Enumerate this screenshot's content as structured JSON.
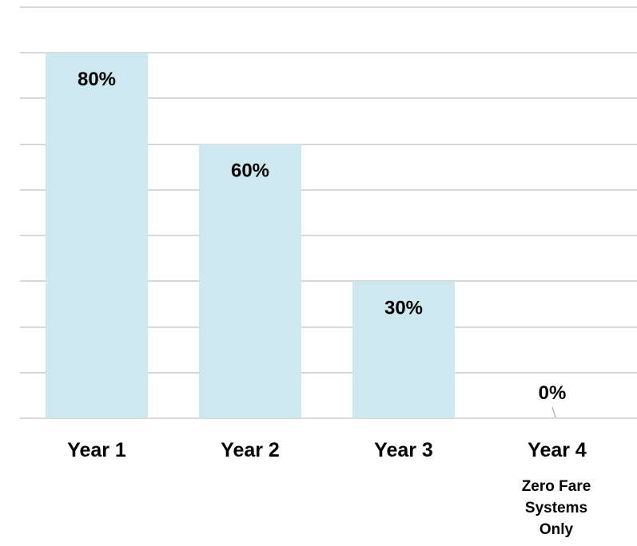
{
  "chart_data": {
    "type": "bar",
    "categories": [
      "Year 1",
      "Year 2",
      "Year 3",
      "Year 4"
    ],
    "values": [
      80,
      60,
      30,
      0
    ],
    "data_labels": [
      "80%",
      "60%",
      "30%",
      "0%"
    ],
    "category_notes": [
      "",
      "",
      "",
      "Zero Fare Systems Only"
    ],
    "category_note_lines": [
      [],
      [],
      [],
      [
        "Zero Fare",
        "Systems",
        "Only"
      ]
    ],
    "title": "",
    "xlabel": "",
    "ylabel": "",
    "ylim": [
      0,
      90
    ],
    "gridline_step": 10,
    "grid": true,
    "legend": "none",
    "colors": {
      "bar": "#cde8ee",
      "gridline": "#d9d9d9",
      "text": "#000000",
      "leader_line": "#a6a6a6"
    }
  }
}
